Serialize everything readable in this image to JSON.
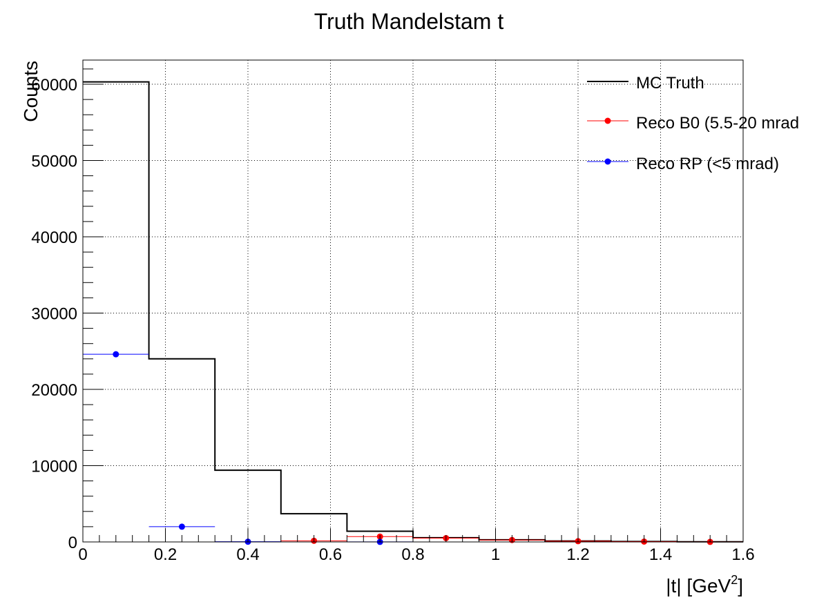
{
  "chart_data": {
    "type": "histogram",
    "title": "Truth Mandelstam t",
    "xlabel": "|t| [GeV",
    "xlabel_sup": "2",
    "xlabel_close": "]",
    "ylabel": "Counts",
    "xlim": [
      0,
      1.6
    ],
    "ylim": [
      0,
      60000
    ],
    "x_ticks": [
      "0",
      "0.2",
      "0.4",
      "0.6",
      "0.8",
      "1",
      "1.2",
      "1.4",
      "1.6"
    ],
    "y_ticks": [
      "0",
      "10000",
      "20000",
      "30000",
      "40000",
      "50000",
      "60000"
    ],
    "grid": true,
    "legend_position": "top-right",
    "series": [
      {
        "name": "MC Truth",
        "style": "step",
        "color": "#000000",
        "bin_edges": [
          0,
          0.16,
          0.32,
          0.48,
          0.64,
          0.8,
          0.96,
          1.12,
          1.28,
          1.44,
          1.6
        ],
        "values": [
          60300,
          24000,
          9400,
          3700,
          1400,
          550,
          280,
          120,
          60,
          20
        ]
      },
      {
        "name": "Reco B0 (5.5-20 mrad",
        "style": "points",
        "color": "#ff0000",
        "x": [
          0.56,
          0.72,
          0.88,
          1.04,
          1.2,
          1.36,
          1.52
        ],
        "values": [
          150,
          700,
          500,
          250,
          100,
          50,
          10
        ],
        "xerr": 0.08
      },
      {
        "name": "Reco RP (<5 mrad)",
        "style": "points",
        "color": "#0000ff",
        "x": [
          0.08,
          0.24,
          0.4,
          0.72
        ],
        "values": [
          24600,
          2000,
          30,
          10
        ],
        "xerr": 0.08
      }
    ]
  }
}
